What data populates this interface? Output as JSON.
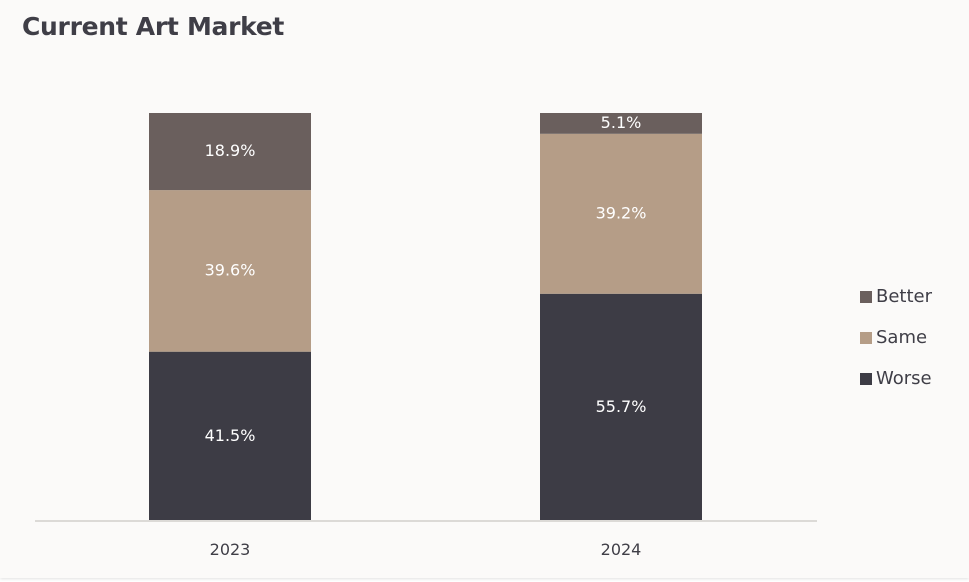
{
  "page": {
    "title": "Current Art Market"
  },
  "colors": {
    "Better": "#6a5f5d",
    "Same": "#b59d87",
    "Worse": "#3d3c45",
    "axis": "#dcdad7",
    "label": "#ffffff",
    "tick": "#3f3e47"
  },
  "chart_data": {
    "type": "bar",
    "stacked": true,
    "title": "Current Art Market",
    "xlabel": "",
    "ylabel": "",
    "categories": [
      "2023",
      "2024"
    ],
    "series": [
      {
        "name": "Worse",
        "values": [
          41.5,
          55.7
        ],
        "labels": [
          "41.5%",
          "55.7%"
        ]
      },
      {
        "name": "Same",
        "values": [
          39.6,
          39.2
        ],
        "labels": [
          "39.6%",
          "39.2%"
        ]
      },
      {
        "name": "Better",
        "values": [
          18.9,
          5.1
        ],
        "labels": [
          "18.9%",
          "5.1%"
        ]
      }
    ],
    "ylim": [
      0,
      100
    ],
    "grid": false,
    "legend": {
      "position": "right",
      "order": [
        "Better",
        "Same",
        "Worse"
      ]
    }
  }
}
